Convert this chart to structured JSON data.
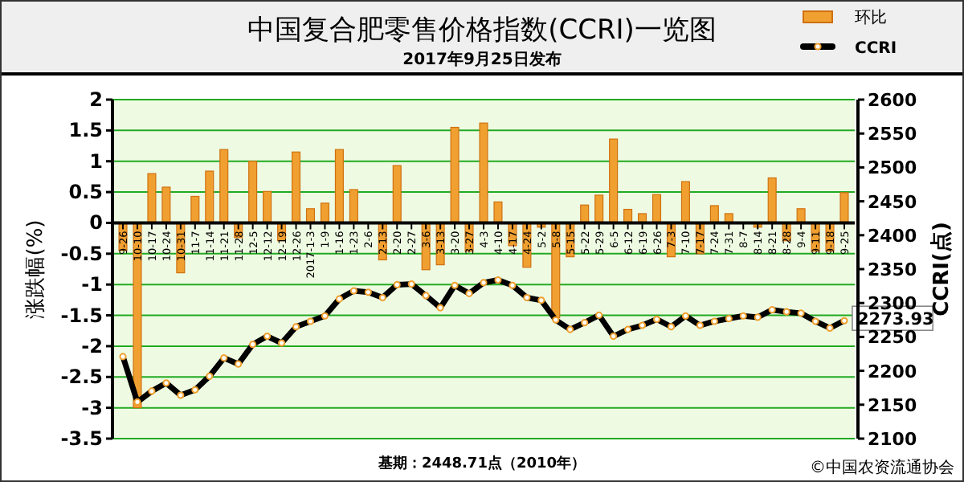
{
  "chart_data": {
    "type": "bar",
    "title": "中国复合肥零售价格指数(CCRI)一览图",
    "subtitle": "2017年9月25日发布",
    "ylabel": "涨跌幅(%)",
    "y2label": "CCRI(点)",
    "categories": [
      "9-26",
      "10-10",
      "10-17",
      "10-24",
      "10-31",
      "11-7",
      "11-14",
      "11-21",
      "11-28",
      "12-5",
      "12-12",
      "12-19",
      "12-26",
      "2017-1-3",
      "1-9",
      "1-16",
      "1-23",
      "2-6",
      "2-13",
      "2-20",
      "2-27",
      "3-6",
      "3-13",
      "3-20",
      "3-27",
      "4-3",
      "4-10",
      "4-17",
      "4-24",
      "5-2",
      "5-8",
      "5-15",
      "5-22",
      "5-29",
      "6-5",
      "6-12",
      "6-19",
      "6-26",
      "7-3",
      "7-10",
      "7-17",
      "7-24",
      "7-31",
      "8-7",
      "8-14",
      "8-21",
      "8-28",
      "9-4",
      "9-11",
      "9-18",
      "9-25"
    ],
    "series": [
      {
        "name": "环比",
        "color": "#f0a030",
        "values": [
          -0.45,
          -3.0,
          0.8,
          0.58,
          -0.81,
          0.43,
          0.84,
          1.19,
          -0.24,
          1.0,
          0.51,
          -0.29,
          1.15,
          0.23,
          0.32,
          1.19,
          0.54,
          0,
          -0.6,
          0.93,
          0,
          -0.76,
          -0.68,
          1.55,
          -0.46,
          1.62,
          0.34,
          -0.37,
          -0.72,
          -0.07,
          -1.54,
          -0.55,
          0.29,
          0.45,
          1.36,
          0.22,
          0.15,
          0.46,
          -0.55,
          0.67,
          -0.5,
          0.28,
          0.15,
          0,
          -0.07,
          0.73,
          -0.29,
          0.23,
          -0.46,
          -0.46,
          0.49
        ]
      },
      {
        "name": "CCRI",
        "type": "line",
        "axis": "y2",
        "color": "#000000",
        "values": [
          2221,
          2154,
          2170,
          2182,
          2164,
          2172,
          2192,
          2219,
          2210,
          2239,
          2251,
          2241,
          2265,
          2273,
          2281,
          2306,
          2318,
          2316,
          2308,
          2327,
          2328,
          2311,
          2293,
          2326,
          2314,
          2330,
          2334,
          2326,
          2308,
          2304,
          2275,
          2261,
          2271,
          2282,
          2251,
          2261,
          2267,
          2276,
          2265,
          2281,
          2267,
          2273,
          2277,
          2281,
          2279,
          2290,
          2287,
          2285,
          2273,
          2263,
          2273.93
        ],
        "value_labels": [
          null,
          null,
          null,
          null,
          null,
          null,
          null,
          null,
          null,
          null,
          null,
          null,
          null,
          null,
          null,
          null,
          null,
          null,
          null,
          null,
          null,
          null,
          null,
          null,
          null,
          null,
          null,
          null,
          null,
          null,
          null,
          null,
          null,
          null,
          null,
          null,
          null,
          null,
          null,
          null,
          null,
          null,
          null,
          null,
          null,
          null,
          null,
          null,
          null,
          null,
          "2273.93"
        ]
      }
    ],
    "ylim": [
      -3.5,
      2
    ],
    "yticks": [
      -3.5,
      -3,
      -2.5,
      -2,
      -1.5,
      -1,
      -0.5,
      0,
      0.5,
      1,
      1.5,
      2
    ],
    "y2lim": [
      2100,
      2600
    ],
    "y2ticks": [
      2100,
      2150,
      2200,
      2250,
      2300,
      2350,
      2400,
      2450,
      2500,
      2550,
      2600
    ],
    "grid": "y",
    "legend": "top right",
    "marker": "circle",
    "annotations": [
      "基期：2448.71点（2010年）",
      "©中国农资流通协会"
    ]
  }
}
